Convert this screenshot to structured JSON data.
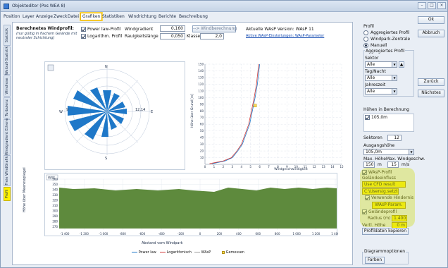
{
  "window": {
    "title": "Objekteditor (Pos WEA 8)",
    "btn_min": "–",
    "btn_max": "□",
    "btn_close": "×"
  },
  "menu": [
    "Position",
    "Layer",
    "Anzeige",
    "Zweck",
    "Datei",
    "Grafiken",
    "Statistiken",
    "Windrichtung",
    "Berichte",
    "Beschreibung"
  ],
  "side_tabs": [
    "Statistik",
    "Weibull-Statistik",
    "Windrose",
    "Turbulenz",
    "Windgradient Ethene",
    "Freie WindGrafik",
    "Profil"
  ],
  "header": {
    "profile_title": "Berechnetes Windprofil:",
    "profile_note": "(nur gültig in flachem Gelände mit neutraler Schichtung)",
    "cb_power": "Power law-Profil",
    "cb_log": "Logarithm. Profil",
    "windgradient_label": "Windgradient",
    "windgradient_value": "0,160",
    "rauhigkeit_label": "Rauigkeitslänge",
    "rauhigkeit_value": "0,050",
    "klasse_label": "Klasse",
    "klasse_value": "2,0",
    "windberechnung_btn": "--> Windberechnung",
    "wasp_version": "Aktuelle WAsP Version: WAsP 11",
    "wasp_link": "Aktive WAsP-Einstellungen: WAsP-Parameter"
  },
  "rose": {
    "labels": [
      "N",
      "S",
      "E",
      "W"
    ],
    "sector_left": "9",
    "sector_right": "12,14"
  },
  "profile_chart": {
    "y_ticks": [
      "150",
      "140",
      "130",
      "120",
      "110",
      "100",
      "90",
      "80",
      "70",
      "60",
      "50",
      "40",
      "30",
      "20",
      "10"
    ],
    "x_ticks": [
      "0",
      "1",
      "2",
      "3",
      "4",
      "5",
      "6",
      "7",
      "8",
      "9",
      "10",
      "11",
      "12",
      "13",
      "14",
      "15"
    ],
    "y_label": "Höhe über Grund [m]",
    "x_label": "Windgeschwindigkeit",
    "marker_label": "5,5"
  },
  "chart_data": {
    "type": "line",
    "title": "",
    "xlabel": "Windgeschwindigkeit",
    "ylabel": "Höhe über Grund [m]",
    "xlim": [
      0,
      15
    ],
    "ylim": [
      0,
      150
    ],
    "series": [
      {
        "name": "Power law",
        "x": [
          0.8,
          2.2,
          3.0,
          3.6,
          4.1,
          4.5,
          4.9,
          5.2,
          5.5,
          5.75,
          6.0
        ],
        "y": [
          1,
          5,
          10,
          20,
          30,
          45,
          60,
          80,
          100,
          120,
          150
        ]
      },
      {
        "name": "Logarithm.",
        "x": [
          0.5,
          2.0,
          2.9,
          3.5,
          4.0,
          4.4,
          4.8,
          5.1,
          5.4,
          5.65,
          5.9
        ],
        "y": [
          1,
          5,
          10,
          20,
          30,
          45,
          60,
          80,
          100,
          120,
          150
        ]
      }
    ],
    "marker": {
      "name": "Gemessen",
      "x": 5.5,
      "y": 88
    }
  },
  "elevation": {
    "box_label": "WSE",
    "y_ticks": [
      "360",
      "350",
      "340",
      "330",
      "320",
      "310",
      "300",
      "290",
      "280",
      "270"
    ],
    "y_label": "Höhe über Meeresspiegel",
    "x_ticks": [
      "-1 400",
      "-1 200",
      "-1 000",
      "-800",
      "-600",
      "-400",
      "-200",
      "0",
      "200",
      "400",
      "600",
      "800",
      "1 000",
      "1 200",
      "1 400"
    ],
    "x_label": "Abstand vom Windpark"
  },
  "legend": {
    "item1": "Power law",
    "item2": "Logarithmisch",
    "item3": "WAsP",
    "item4": "Gemessen"
  },
  "right": {
    "profil_title": "Profil",
    "radio1": "Aggregiertes Profil",
    "radio2": "Windpark-Zentrale",
    "radio3": "Manuell",
    "agg_title": "Aggregiertes Profil",
    "sektor_label": "Sektor",
    "sektor_value": "Alle",
    "tagnacht_label": "Tag/Nacht",
    "tagnacht_value": "Alle",
    "jahreszeit_label": "Jahreszeit",
    "jahreszeit_value": "Alle",
    "hoehen_label": "Höhen in Berechnung",
    "hoehen_item": "105,0m",
    "sektoren_label": "Sektoren",
    "sektoren_value": "12",
    "ausgangshoehe_label": "Ausgangshöhe",
    "ausgangshoehe_value": "105,0m",
    "max_hoehe_label": "Max. Höhe",
    "max_wind_label": "Max. Windgeschw.",
    "max_hoehe_value": "150",
    "max_hoehe_unit": "m",
    "max_wind_value": "15",
    "max_wind_unit": "m/s",
    "wasp_profil_label": "WAsP-Profil",
    "gelaendeeinfluss_label": "Geländeeinfluss",
    "cfd_value": "Use CFD result",
    "usergesetzt_value": "C:\\Users\\g.setzte\\...",
    "verwende_label": "Verwende Hindernis",
    "wasp_param_btn": "WAsP-Param.",
    "gelaendeprofil_label": "Geländeprofil",
    "radius_label": "Radius (m)",
    "radius_value": "1.400",
    "vertl_label": "Vertl. Höhe",
    "vertl_value": "0 m",
    "profildaten_btn": "Profildaten kopieren",
    "diagramm_label": "Diagrammoptionen",
    "farben_btn": "Farben"
  },
  "far_right": {
    "ok": "Ok",
    "abbruch": "Abbruch",
    "zurueck": "Zurück",
    "naechstes": "Nächstes"
  },
  "colors": {
    "accent_blue": "#1f78c8",
    "highlight": "#fff200",
    "terrain": "#5e8a3d"
  }
}
